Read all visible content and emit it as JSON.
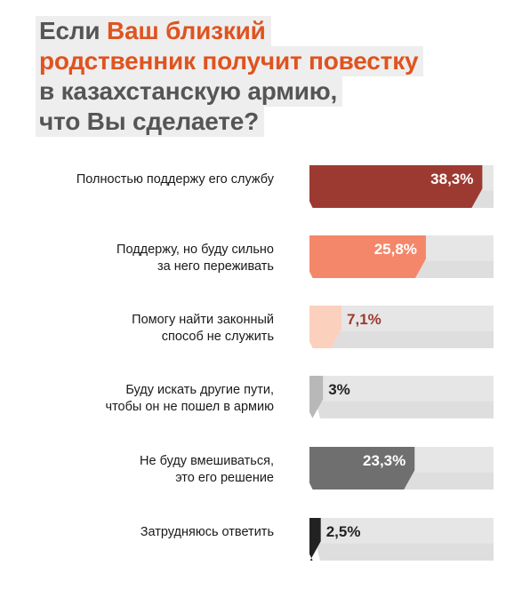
{
  "title": {
    "part1": "Если ",
    "part2": "Ваш близкий",
    "line2": "родственник получит повестку",
    "line3": "в казахстанскую армию,",
    "line4": "что Вы сделаете?"
  },
  "colors": {
    "title_gray": "#555555",
    "title_accent": "#e0531f",
    "track": "#e6e6e6",
    "track_shadow": "#cfcfcf"
  },
  "chart_data": {
    "type": "bar",
    "orientation": "horizontal",
    "xlim": [
      0,
      100
    ],
    "categories": [
      [
        "Полностью поддержу его службу"
      ],
      [
        "Поддержу, но буду сильно",
        "за него переживать"
      ],
      [
        "Помогу найти законный",
        "способ не служить"
      ],
      [
        "Буду искать другие пути,",
        "чтобы он не пошел в армию"
      ],
      [
        "Не буду вмешиваться,",
        "это его решение"
      ],
      [
        "Затрудняюсь ответить"
      ]
    ],
    "values": [
      38.3,
      25.8,
      7.1,
      3,
      23.3,
      2.5
    ],
    "value_labels": [
      "38,3%",
      "25,8%",
      "7,1%",
      "3%",
      "23,3%",
      "2,5%"
    ],
    "colors": [
      "#9c3a31",
      "#f4876a",
      "#fbd0bd",
      "#b8b8b8",
      "#6f6f6f",
      "#222222"
    ],
    "value_label_colors": [
      "#ffffff",
      "#ffffff",
      "#9c3a31",
      "#222222",
      "#ffffff",
      "#222222"
    ]
  }
}
